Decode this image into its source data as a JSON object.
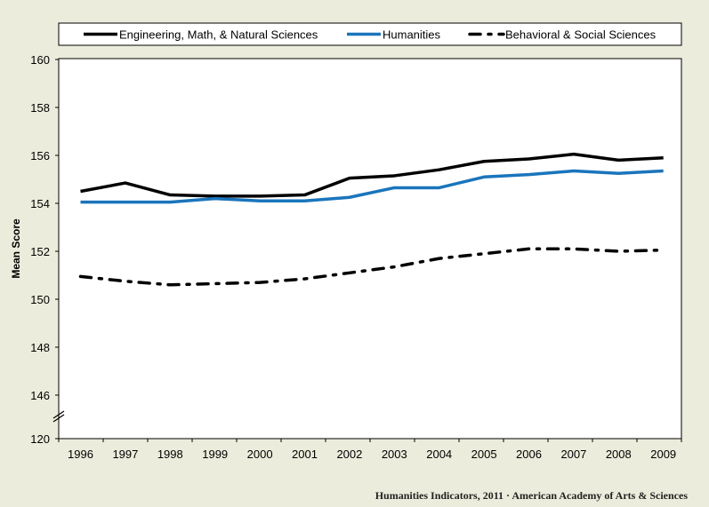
{
  "chart_data": {
    "type": "line",
    "title": "",
    "xlabel": "",
    "ylabel": "Mean Score",
    "x": [
      "1996",
      "1997",
      "1998",
      "1999",
      "2000",
      "2001",
      "2002",
      "2003",
      "2004",
      "2005",
      "2006",
      "2007",
      "2008",
      "2009"
    ],
    "ylim": [
      144,
      160
    ],
    "yticks": [
      "160",
      "158",
      "156",
      "154",
      "152",
      "150",
      "148",
      "146",
      "120"
    ],
    "axis_break": true,
    "grid": false,
    "legend_position": "top",
    "series": [
      {
        "name": "Engineering, Math, & Natural Sciences",
        "color": "#000000",
        "style": "solid",
        "values": [
          154.5,
          154.85,
          154.35,
          154.3,
          154.3,
          154.35,
          155.05,
          155.15,
          155.4,
          155.75,
          155.85,
          156.05,
          155.8,
          155.9
        ]
      },
      {
        "name": "Humanities",
        "color": "#1a75bc",
        "style": "solid",
        "values": [
          154.05,
          154.05,
          154.05,
          154.2,
          154.1,
          154.1,
          154.25,
          154.65,
          154.65,
          155.1,
          155.2,
          155.35,
          155.25,
          155.35
        ]
      },
      {
        "name": "Behavioral & Social Sciences",
        "color": "#000000",
        "style": "dashdot",
        "values": [
          150.95,
          150.75,
          150.6,
          150.65,
          150.7,
          150.85,
          151.1,
          151.35,
          151.7,
          151.9,
          152.1,
          152.1,
          152.0,
          152.05
        ]
      }
    ]
  },
  "footer": {
    "source": "Humanities  Indicators, 2011 · American Academy  of Arts & Sciences"
  }
}
